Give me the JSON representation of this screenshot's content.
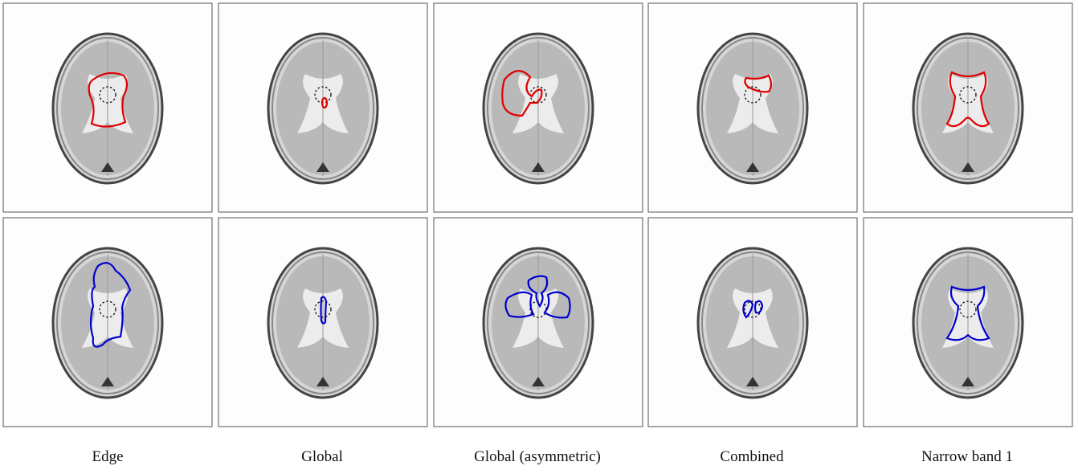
{
  "captions": [
    "Edge",
    "Global",
    "Global (asymmetric)",
    "Combined",
    "Narrow band 1"
  ]
}
